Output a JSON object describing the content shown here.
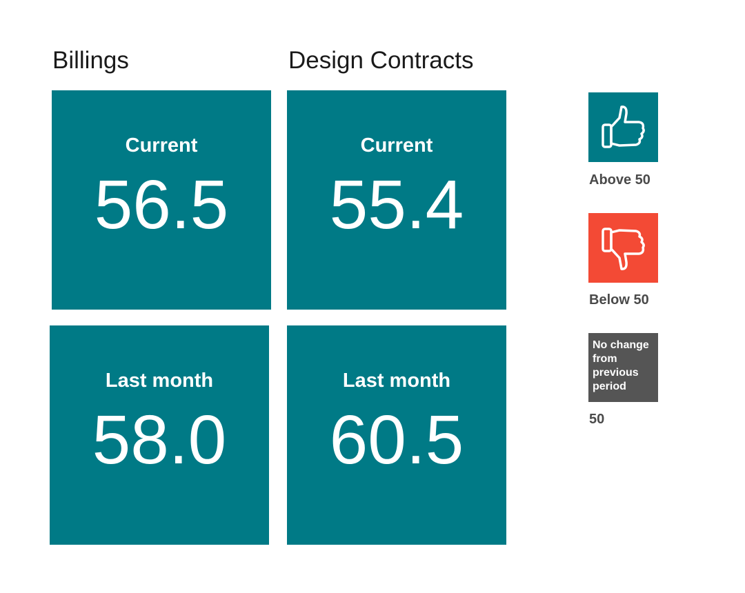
{
  "colors": {
    "tile": "#007a86",
    "above": "#007a86",
    "below": "#f34a35",
    "neutral": "#555555"
  },
  "columns": [
    {
      "title": "Billings",
      "current": {
        "label": "Current",
        "value": "56.5"
      },
      "last_month": {
        "label": "Last month",
        "value": "58.0"
      }
    },
    {
      "title": "Design Contracts",
      "current": {
        "label": "Current",
        "value": "55.4"
      },
      "last_month": {
        "label": "Last month",
        "value": "60.5"
      }
    }
  ],
  "legend": {
    "above": {
      "icon": "thumbs-up-icon",
      "label": "Above 50"
    },
    "below": {
      "icon": "thumbs-down-icon",
      "label": "Below 50"
    },
    "neutral": {
      "box_text": "No change from previous period",
      "label": "50"
    }
  }
}
